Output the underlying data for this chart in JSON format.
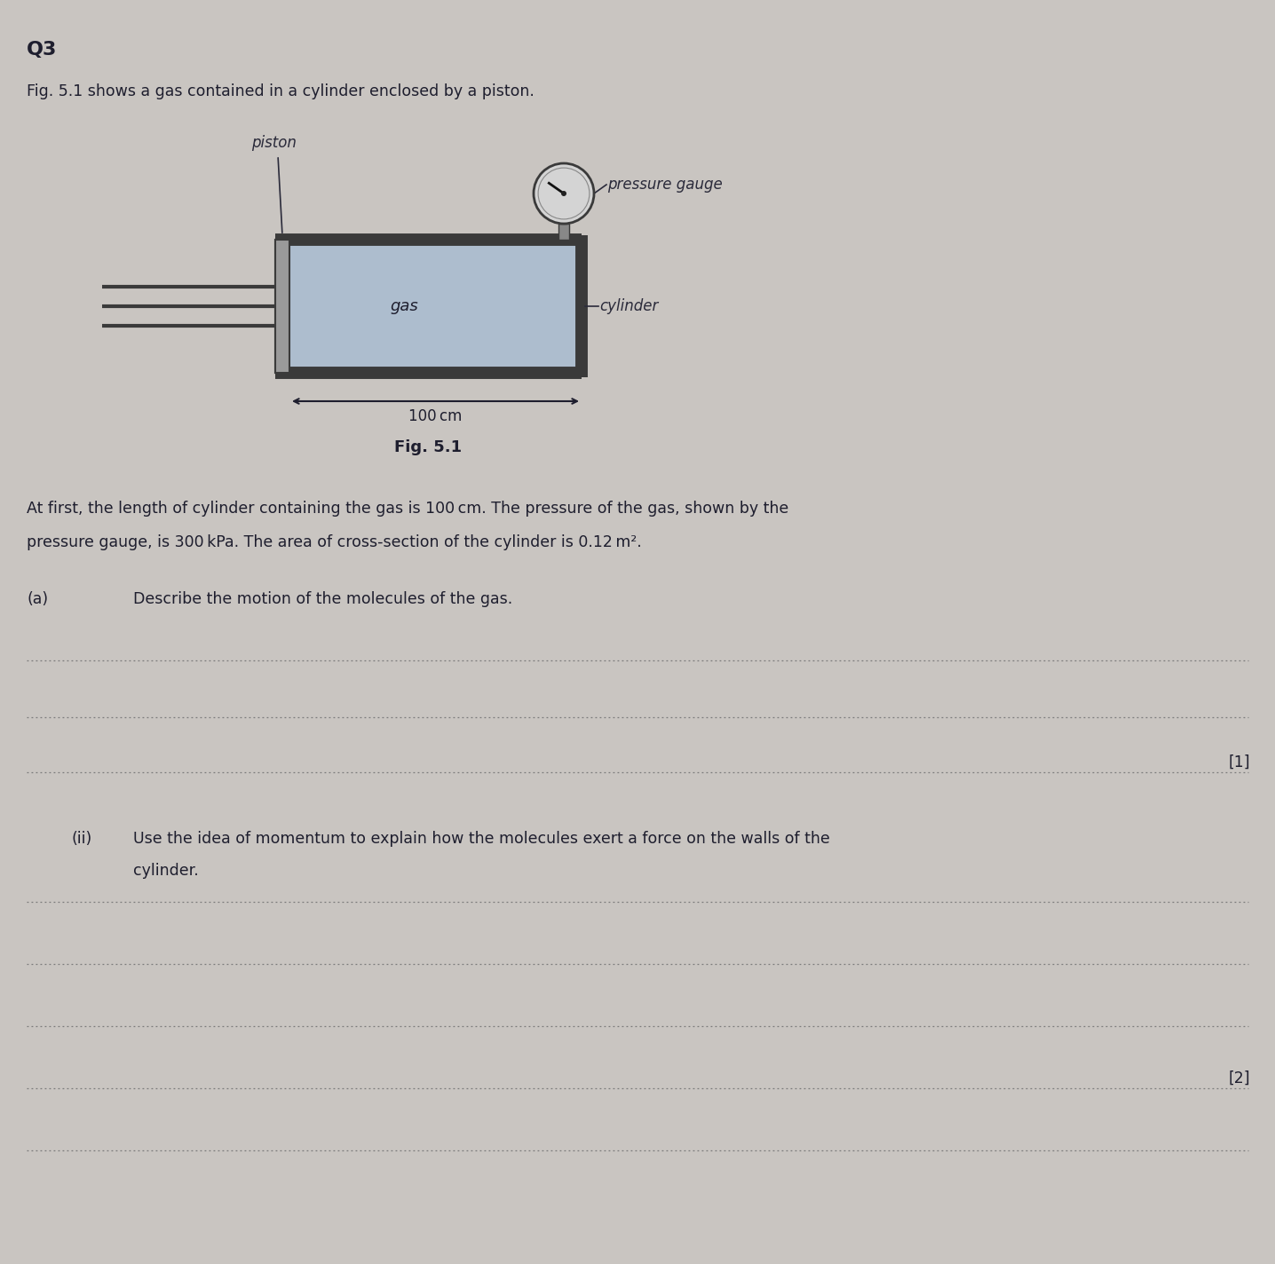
{
  "background_color": "#c9c5c1",
  "q_label": "Q3",
  "intro_text": "Fig. 5.1 shows a gas contained in a cylinder enclosed by a piston.",
  "fig_label": "Fig. 5.1",
  "param_line1": "At first, the length of cylinder containing the gas is 100 cm. The pressure of the gas, shown by the",
  "param_line2": "pressure gauge, is 300 kPa. The area of cross-section of the cylinder is 0.12 m².",
  "part_a_label": "(a)",
  "part_a_text": "Describe the motion of the molecules of the gas.",
  "part_ii_label": "(ii)",
  "part_ii_line1": "Use the idea of momentum to explain how the molecules exert a force on the walls of the",
  "part_ii_line2": "cylinder.",
  "mark_1": "[1]",
  "mark_2": "[2]",
  "dot_line_color": "#7a7a7a",
  "gas_fill": "#adbdce",
  "cylinder_border": "#3a3a3a",
  "gauge_fill": "#d4d4d4",
  "text_color": "#1e1e2e",
  "annot_color": "#2a2a3a",
  "rod_color": "#3a3a3a",
  "piston_fill": "#9a9a9a",
  "piston_border": "#3a3a3a",
  "wall_color": "#3a3a3a",
  "gauge_needle_color": "#111111",
  "stem_fill": "#888888"
}
